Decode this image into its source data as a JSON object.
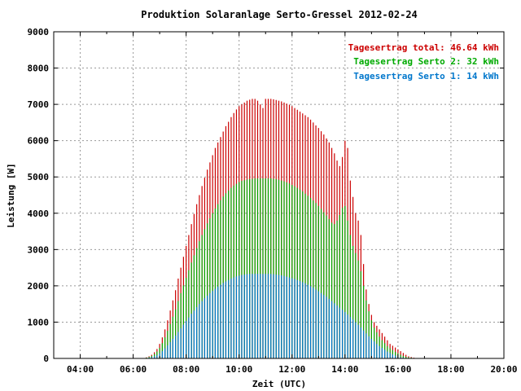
{
  "chart_data": {
    "type": "bar",
    "title": "Produktion Solaranlage Serto-Gressel 2012-02-24",
    "xlabel": "Zeit (UTC)",
    "ylabel": "Leistung [W]",
    "xlim": [
      3,
      20
    ],
    "ylim": [
      0,
      9000
    ],
    "x_ticks": [
      "04:00",
      "06:00",
      "08:00",
      "10:00",
      "12:00",
      "14:00",
      "16:00",
      "18:00",
      "20:00"
    ],
    "y_ticks": [
      "0",
      "1000",
      "2000",
      "3000",
      "4000",
      "5000",
      "6000",
      "7000",
      "8000",
      "9000"
    ],
    "grid": true,
    "legend_position": "top-right",
    "legend": [
      {
        "text": "Tagesertrag total: 46.64 kWh",
        "color": "#cc0000"
      },
      {
        "text": "Tagesertrag Serto 2: 32 kWh",
        "color": "#00aa00"
      },
      {
        "text": "Tagesertrag Serto 1: 14 kWh",
        "color": "#0077cc"
      }
    ],
    "series_colors": [
      "#cc0000",
      "#00aa00",
      "#0077cc"
    ],
    "series": [
      {
        "name": "Tagesertrag total: 46.64 kWh",
        "x": [
          6.5,
          6.6,
          6.7,
          6.8,
          6.9,
          7.0,
          7.1,
          7.2,
          7.3,
          7.4,
          7.5,
          7.6,
          7.7,
          7.8,
          7.9,
          8.0,
          8.1,
          8.2,
          8.3,
          8.4,
          8.5,
          8.6,
          8.7,
          8.8,
          8.9,
          9.0,
          9.1,
          9.2,
          9.3,
          9.4,
          9.5,
          9.6,
          9.7,
          9.8,
          9.9,
          10.0,
          10.1,
          10.2,
          10.3,
          10.4,
          10.5,
          10.6,
          10.7,
          10.8,
          10.9,
          11.0,
          11.1,
          11.2,
          11.3,
          11.4,
          11.5,
          11.6,
          11.7,
          11.8,
          11.9,
          12.0,
          12.1,
          12.2,
          12.3,
          12.4,
          12.5,
          12.6,
          12.7,
          12.8,
          12.9,
          13.0,
          13.1,
          13.2,
          13.3,
          13.4,
          13.5,
          13.6,
          13.7,
          13.8,
          13.9,
          14.0,
          14.1,
          14.2,
          14.3,
          14.4,
          14.5,
          14.6,
          14.7,
          14.8,
          14.9,
          15.0,
          15.1,
          15.2,
          15.3,
          15.4,
          15.5,
          15.6,
          15.7,
          15.8,
          15.9,
          16.0,
          16.1,
          16.2,
          16.3,
          16.4,
          16.5,
          16.6,
          16.7,
          16.8,
          16.9
        ],
        "values": [
          30,
          60,
          100,
          170,
          260,
          400,
          580,
          800,
          1050,
          1320,
          1600,
          1880,
          2200,
          2500,
          2800,
          3100,
          3400,
          3700,
          3980,
          4250,
          4500,
          4750,
          4980,
          5200,
          5400,
          5600,
          5800,
          5950,
          6100,
          6250,
          6400,
          6520,
          6650,
          6760,
          6860,
          6950,
          7000,
          7050,
          7100,
          7130,
          7150,
          7150,
          7100,
          7000,
          6900,
          7150,
          7150,
          7150,
          7140,
          7120,
          7100,
          7080,
          7050,
          7020,
          6990,
          6950,
          6900,
          6850,
          6800,
          6750,
          6700,
          6650,
          6580,
          6500,
          6420,
          6350,
          6260,
          6170,
          6060,
          5950,
          5800,
          5650,
          5450,
          5300,
          5550,
          6000,
          5800,
          4900,
          4450,
          4000,
          3800,
          3400,
          2600,
          1900,
          1500,
          1200,
          1000,
          900,
          800,
          700,
          600,
          500,
          400,
          350,
          300,
          250,
          200,
          150,
          100,
          60,
          40,
          20,
          10,
          5,
          0
        ],
        "note_omit": true
      },
      {
        "name": "Tagesertrag Serto 2: 32 kWh",
        "x": [
          6.5,
          6.6,
          6.7,
          6.8,
          6.9,
          7.0,
          7.1,
          7.2,
          7.3,
          7.4,
          7.5,
          7.6,
          7.7,
          7.8,
          7.9,
          8.0,
          8.1,
          8.2,
          8.3,
          8.4,
          8.5,
          8.6,
          8.7,
          8.8,
          8.9,
          9.0,
          9.1,
          9.2,
          9.3,
          9.4,
          9.5,
          9.6,
          9.7,
          9.8,
          9.9,
          10.0,
          10.1,
          10.2,
          10.3,
          10.4,
          10.5,
          10.6,
          10.7,
          10.8,
          10.9,
          11.0,
          11.1,
          11.2,
          11.3,
          11.4,
          11.5,
          11.6,
          11.7,
          11.8,
          11.9,
          12.0,
          12.1,
          12.2,
          12.3,
          12.4,
          12.5,
          12.6,
          12.7,
          12.8,
          12.9,
          13.0,
          13.1,
          13.2,
          13.3,
          13.4,
          13.5,
          13.6,
          13.7,
          13.8,
          13.9,
          14.0,
          14.1,
          14.2,
          14.3,
          14.4,
          14.5,
          14.6,
          14.7,
          14.8,
          14.9,
          15.0,
          15.1,
          15.2,
          15.3,
          15.4,
          15.5,
          15.6,
          15.7,
          15.8,
          15.9,
          16.0,
          16.1,
          16.2,
          16.3,
          16.4,
          16.5,
          16.6,
          16.7,
          16.8,
          16.9
        ],
        "values": [
          20,
          40,
          70,
          120,
          190,
          290,
          420,
          580,
          760,
          950,
          1150,
          1350,
          1580,
          1800,
          2010,
          2220,
          2430,
          2640,
          2840,
          3040,
          3230,
          3400,
          3560,
          3720,
          3860,
          4000,
          4130,
          4250,
          4360,
          4460,
          4550,
          4630,
          4700,
          4760,
          4810,
          4860,
          4890,
          4910,
          4930,
          4940,
          4950,
          4960,
          4960,
          4960,
          4960,
          4960,
          4960,
          4960,
          4950,
          4940,
          4920,
          4900,
          4880,
          4850,
          4820,
          4780,
          4740,
          4700,
          4650,
          4600,
          4540,
          4480,
          4420,
          4350,
          4280,
          4200,
          4120,
          4030,
          3940,
          3840,
          3740,
          3700,
          3800,
          3950,
          4150,
          4200,
          3800,
          3400,
          3100,
          2900,
          2700,
          2400,
          2000,
          1600,
          1300,
          1050,
          850,
          720,
          600,
          500,
          420,
          340,
          280,
          230,
          180,
          140,
          100,
          70,
          45,
          30,
          20,
          10,
          5,
          2,
          0
        ]
      },
      {
        "name": "Tagesertrag Serto 1: 14 kWh",
        "x": [
          6.5,
          6.6,
          6.7,
          6.8,
          6.9,
          7.0,
          7.1,
          7.2,
          7.3,
          7.4,
          7.5,
          7.6,
          7.7,
          7.8,
          7.9,
          8.0,
          8.1,
          8.2,
          8.3,
          8.4,
          8.5,
          8.6,
          8.7,
          8.8,
          8.9,
          9.0,
          9.1,
          9.2,
          9.3,
          9.4,
          9.5,
          9.6,
          9.7,
          9.8,
          9.9,
          10.0,
          10.1,
          10.2,
          10.3,
          10.4,
          10.5,
          10.6,
          10.7,
          10.8,
          10.9,
          11.0,
          11.1,
          11.2,
          11.3,
          11.4,
          11.5,
          11.6,
          11.7,
          11.8,
          11.9,
          12.0,
          12.1,
          12.2,
          12.3,
          12.4,
          12.5,
          12.6,
          12.7,
          12.8,
          12.9,
          13.0,
          13.1,
          13.2,
          13.3,
          13.4,
          13.5,
          13.6,
          13.7,
          13.8,
          13.9,
          14.0,
          14.1,
          14.2,
          14.3,
          14.4,
          14.5,
          14.6,
          14.7,
          14.8,
          14.9,
          15.0,
          15.1,
          15.2,
          15.3,
          15.4,
          15.5,
          15.6,
          15.7,
          15.8,
          15.9,
          16.0,
          16.1,
          16.2,
          16.3,
          16.4,
          16.5,
          16.6,
          16.7,
          16.8,
          16.9
        ],
        "values": [
          10,
          20,
          35,
          60,
          90,
          140,
          200,
          280,
          360,
          450,
          540,
          630,
          730,
          830,
          930,
          1030,
          1130,
          1230,
          1320,
          1410,
          1500,
          1580,
          1660,
          1730,
          1800,
          1860,
          1920,
          1980,
          2030,
          2080,
          2120,
          2160,
          2200,
          2230,
          2260,
          2280,
          2300,
          2310,
          2320,
          2330,
          2330,
          2330,
          2330,
          2330,
          2330,
          2330,
          2330,
          2330,
          2320,
          2310,
          2300,
          2290,
          2270,
          2250,
          2230,
          2210,
          2190,
          2160,
          2130,
          2100,
          2070,
          2030,
          1990,
          1950,
          1900,
          1850,
          1800,
          1750,
          1700,
          1640,
          1580,
          1520,
          1460,
          1400,
          1340,
          1280,
          1210,
          1140,
          1070,
          1000,
          930,
          850,
          770,
          690,
          610,
          540,
          470,
          400,
          340,
          290,
          240,
          190,
          150,
          110,
          80,
          55,
          35,
          20,
          10,
          5,
          2,
          1,
          0,
          0,
          0
        ]
      }
    ]
  }
}
